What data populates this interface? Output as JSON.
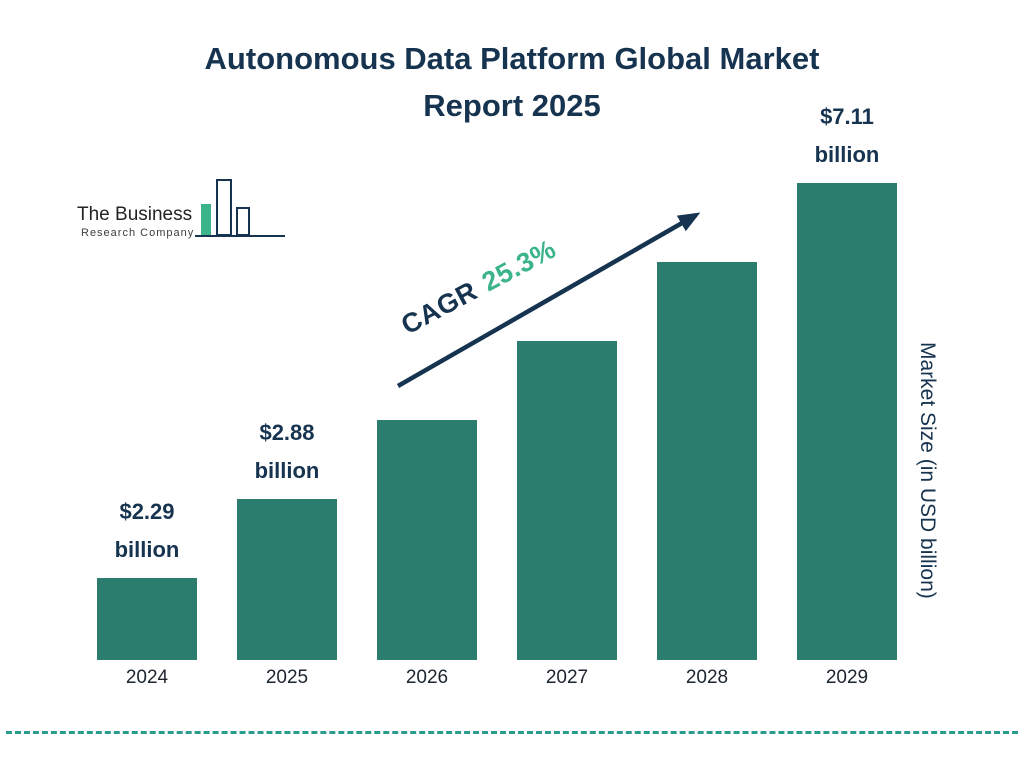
{
  "page": {
    "title_line1": "Autonomous Data Platform Global Market",
    "title_line2": "Report 2025"
  },
  "logo": {
    "name_line1": "The Business",
    "name_line2": "Research Company"
  },
  "cagr": {
    "prefix": "CAGR",
    "value": "25.3%"
  },
  "axis": {
    "y_label": "Market Size (in USD billion)"
  },
  "colors": {
    "bar": "#2b7d6d",
    "title": "#16334f",
    "cagr_value": "#3cb489",
    "arrow": "#16334f",
    "divider": "#2a9c8b",
    "logo_green": "#3cb489"
  },
  "chart_data": {
    "type": "bar",
    "title": "Autonomous Data Platform Global Market Report 2025",
    "categories": [
      "2024",
      "2025",
      "2026",
      "2027",
      "2028",
      "2029"
    ],
    "values": [
      2.29,
      2.88,
      3.61,
      4.52,
      5.66,
      7.11
    ],
    "labeled_points": [
      {
        "category": "2024",
        "label_value": "$2.29",
        "label_unit": "billion"
      },
      {
        "category": "2025",
        "label_value": "$2.88",
        "label_unit": "billion"
      },
      {
        "category": "2029",
        "label_value": "$7.11",
        "label_unit": "billion"
      }
    ],
    "xlabel": "",
    "ylabel": "Market Size (in USD billion)",
    "annotations": [
      "CAGR 25.3%"
    ],
    "legend": [],
    "grid": false,
    "bar_color": "#2b7d6d",
    "note": "Only 2024, 2025 and 2029 bars carry value labels in the image; 2026-2028 values estimated from the 25.3% CAGR."
  }
}
